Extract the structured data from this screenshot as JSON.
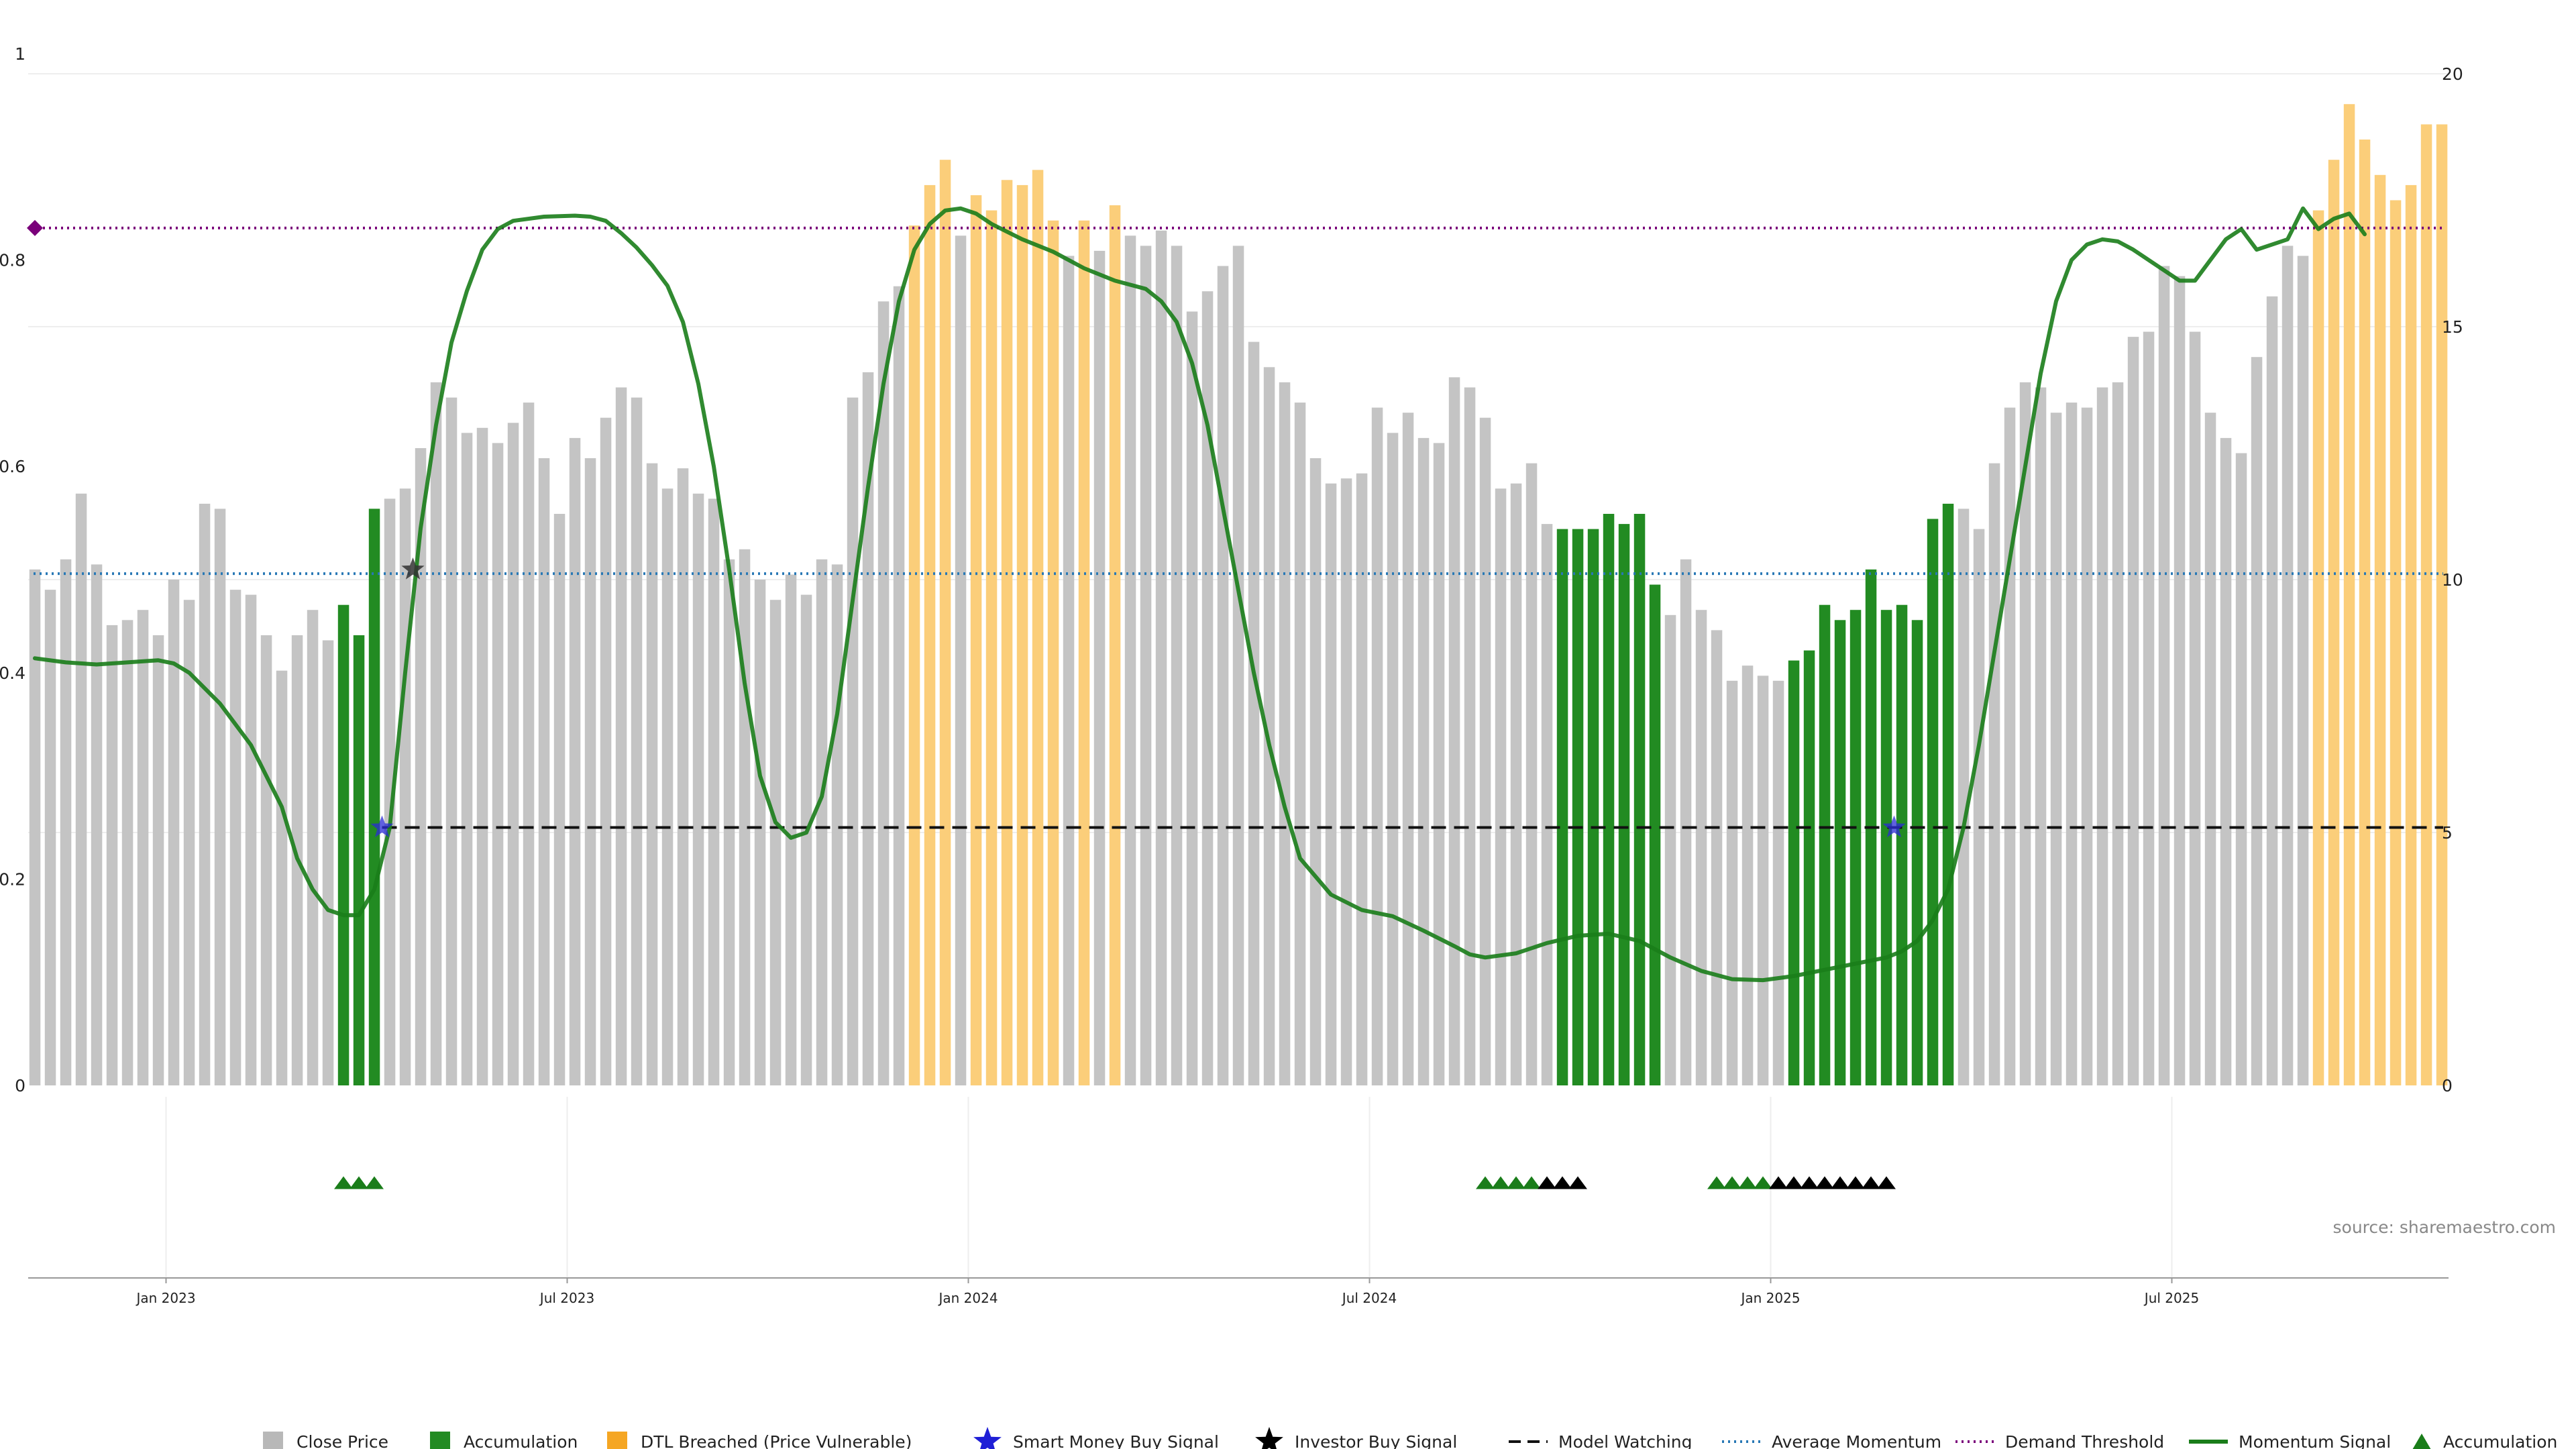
{
  "chart_data": {
    "type": "bar",
    "title": "",
    "xlabel": "",
    "ylabel": "",
    "left_axis": {
      "range": [
        0,
        1
      ],
      "ticks": [
        "0",
        "0.2",
        "0.4",
        "0.6",
        "0.8",
        "1"
      ]
    },
    "right_axis": {
      "range": [
        0,
        20
      ],
      "ticks": [
        "0",
        "5",
        "10",
        "15",
        "20"
      ]
    },
    "x_ticks": [
      "Jan 2023",
      "Jul 2023",
      "Jan 2024",
      "Jul 2024",
      "Jan 2025",
      "Jul 2025"
    ],
    "x_tick_bars": [
      8.5,
      34.5,
      60.5,
      86.5,
      112.5,
      138.5
    ],
    "grid": true,
    "legend_position": "bottom",
    "source": "source: sharemaestro.com",
    "bar_kinds": [
      "Close Price",
      "Accumulation",
      "DTL Breached (Price Vulnerable)"
    ],
    "bar_colors": {
      "gray": "#c4c4c4",
      "green": "#228b22",
      "orange": "#fbce7a"
    },
    "bars": [
      [
        10.2,
        "gray"
      ],
      [
        9.8,
        "gray"
      ],
      [
        10.4,
        "gray"
      ],
      [
        11.7,
        "gray"
      ],
      [
        10.3,
        "gray"
      ],
      [
        9.1,
        "gray"
      ],
      [
        9.2,
        "gray"
      ],
      [
        9.4,
        "gray"
      ],
      [
        8.9,
        "gray"
      ],
      [
        10.0,
        "gray"
      ],
      [
        9.6,
        "gray"
      ],
      [
        11.5,
        "gray"
      ],
      [
        11.4,
        "gray"
      ],
      [
        9.8,
        "gray"
      ],
      [
        9.7,
        "gray"
      ],
      [
        8.9,
        "gray"
      ],
      [
        8.2,
        "gray"
      ],
      [
        8.9,
        "gray"
      ],
      [
        9.4,
        "gray"
      ],
      [
        8.8,
        "gray"
      ],
      [
        9.5,
        "green"
      ],
      [
        8.9,
        "green"
      ],
      [
        11.4,
        "green"
      ],
      [
        11.6,
        "gray"
      ],
      [
        11.8,
        "gray"
      ],
      [
        12.6,
        "gray"
      ],
      [
        13.9,
        "gray"
      ],
      [
        13.6,
        "gray"
      ],
      [
        12.9,
        "gray"
      ],
      [
        13.0,
        "gray"
      ],
      [
        12.7,
        "gray"
      ],
      [
        13.1,
        "gray"
      ],
      [
        13.5,
        "gray"
      ],
      [
        12.4,
        "gray"
      ],
      [
        11.3,
        "gray"
      ],
      [
        12.8,
        "gray"
      ],
      [
        12.4,
        "gray"
      ],
      [
        13.2,
        "gray"
      ],
      [
        13.8,
        "gray"
      ],
      [
        13.6,
        "gray"
      ],
      [
        12.3,
        "gray"
      ],
      [
        11.8,
        "gray"
      ],
      [
        12.2,
        "gray"
      ],
      [
        11.7,
        "gray"
      ],
      [
        11.6,
        "gray"
      ],
      [
        10.4,
        "gray"
      ],
      [
        10.6,
        "gray"
      ],
      [
        10.0,
        "gray"
      ],
      [
        9.6,
        "gray"
      ],
      [
        10.1,
        "gray"
      ],
      [
        9.7,
        "gray"
      ],
      [
        10.4,
        "gray"
      ],
      [
        10.3,
        "gray"
      ],
      [
        13.6,
        "gray"
      ],
      [
        14.1,
        "gray"
      ],
      [
        15.5,
        "gray"
      ],
      [
        15.8,
        "gray"
      ],
      [
        17.0,
        "orange"
      ],
      [
        17.8,
        "orange"
      ],
      [
        18.3,
        "orange"
      ],
      [
        16.8,
        "gray"
      ],
      [
        17.6,
        "orange"
      ],
      [
        17.3,
        "orange"
      ],
      [
        17.9,
        "orange"
      ],
      [
        17.8,
        "orange"
      ],
      [
        18.1,
        "orange"
      ],
      [
        17.1,
        "orange"
      ],
      [
        16.4,
        "gray"
      ],
      [
        17.1,
        "orange"
      ],
      [
        16.5,
        "gray"
      ],
      [
        17.4,
        "orange"
      ],
      [
        16.8,
        "gray"
      ],
      [
        16.6,
        "gray"
      ],
      [
        16.9,
        "gray"
      ],
      [
        16.6,
        "gray"
      ],
      [
        15.3,
        "gray"
      ],
      [
        15.7,
        "gray"
      ],
      [
        16.2,
        "gray"
      ],
      [
        16.6,
        "gray"
      ],
      [
        14.7,
        "gray"
      ],
      [
        14.2,
        "gray"
      ],
      [
        13.9,
        "gray"
      ],
      [
        13.5,
        "gray"
      ],
      [
        12.4,
        "gray"
      ],
      [
        11.9,
        "gray"
      ],
      [
        12.0,
        "gray"
      ],
      [
        12.1,
        "gray"
      ],
      [
        13.4,
        "gray"
      ],
      [
        12.9,
        "gray"
      ],
      [
        13.3,
        "gray"
      ],
      [
        12.8,
        "gray"
      ],
      [
        12.7,
        "gray"
      ],
      [
        14.0,
        "gray"
      ],
      [
        13.8,
        "gray"
      ],
      [
        13.2,
        "gray"
      ],
      [
        11.8,
        "gray"
      ],
      [
        11.9,
        "gray"
      ],
      [
        12.3,
        "gray"
      ],
      [
        11.1,
        "gray"
      ],
      [
        11.0,
        "green"
      ],
      [
        11.0,
        "green"
      ],
      [
        11.0,
        "green"
      ],
      [
        11.3,
        "green"
      ],
      [
        11.1,
        "green"
      ],
      [
        11.3,
        "green"
      ],
      [
        9.9,
        "green"
      ],
      [
        9.3,
        "gray"
      ],
      [
        10.4,
        "gray"
      ],
      [
        9.4,
        "gray"
      ],
      [
        9.0,
        "gray"
      ],
      [
        8.0,
        "gray"
      ],
      [
        8.3,
        "gray"
      ],
      [
        8.1,
        "gray"
      ],
      [
        8.0,
        "gray"
      ],
      [
        8.4,
        "green"
      ],
      [
        8.6,
        "green"
      ],
      [
        9.5,
        "green"
      ],
      [
        9.2,
        "green"
      ],
      [
        9.4,
        "green"
      ],
      [
        10.2,
        "green"
      ],
      [
        9.4,
        "green"
      ],
      [
        9.5,
        "green"
      ],
      [
        9.2,
        "green"
      ],
      [
        11.2,
        "green"
      ],
      [
        11.5,
        "green"
      ],
      [
        11.4,
        "gray"
      ],
      [
        11.0,
        "gray"
      ],
      [
        12.3,
        "gray"
      ],
      [
        13.4,
        "gray"
      ],
      [
        13.9,
        "gray"
      ],
      [
        13.8,
        "gray"
      ],
      [
        13.3,
        "gray"
      ],
      [
        13.5,
        "gray"
      ],
      [
        13.4,
        "gray"
      ],
      [
        13.8,
        "gray"
      ],
      [
        13.9,
        "gray"
      ],
      [
        14.8,
        "gray"
      ],
      [
        14.9,
        "gray"
      ],
      [
        16.2,
        "gray"
      ],
      [
        16.0,
        "gray"
      ],
      [
        14.9,
        "gray"
      ],
      [
        13.3,
        "gray"
      ],
      [
        12.8,
        "gray"
      ],
      [
        12.5,
        "gray"
      ],
      [
        14.4,
        "gray"
      ],
      [
        15.6,
        "gray"
      ],
      [
        16.6,
        "gray"
      ],
      [
        16.4,
        "gray"
      ],
      [
        17.3,
        "orange"
      ],
      [
        18.3,
        "orange"
      ],
      [
        19.4,
        "orange"
      ],
      [
        18.7,
        "orange"
      ],
      [
        18.0,
        "orange"
      ],
      [
        17.5,
        "orange"
      ],
      [
        17.8,
        "orange"
      ],
      [
        19.0,
        "orange"
      ],
      [
        19.0,
        "orange"
      ]
    ],
    "momentum_signal": {
      "name": "Momentum Signal",
      "color": "#1a7d1a",
      "points": [
        [
          0,
          0.414
        ],
        [
          2,
          0.41
        ],
        [
          4,
          0.408
        ],
        [
          6,
          0.41
        ],
        [
          8,
          0.412
        ],
        [
          9,
          0.409
        ],
        [
          10,
          0.4
        ],
        [
          12,
          0.37
        ],
        [
          14,
          0.33
        ],
        [
          16,
          0.27
        ],
        [
          17,
          0.22
        ],
        [
          18,
          0.19
        ],
        [
          19,
          0.17
        ],
        [
          20,
          0.165
        ],
        [
          21,
          0.165
        ],
        [
          22,
          0.19
        ],
        [
          23,
          0.25
        ],
        [
          24,
          0.4
        ],
        [
          25,
          0.54
        ],
        [
          26,
          0.64
        ],
        [
          27,
          0.72
        ],
        [
          28,
          0.77
        ],
        [
          29,
          0.81
        ],
        [
          30,
          0.83
        ],
        [
          31,
          0.838
        ],
        [
          33,
          0.842
        ],
        [
          35,
          0.843
        ],
        [
          36,
          0.842
        ],
        [
          37,
          0.838
        ],
        [
          38,
          0.826
        ],
        [
          39,
          0.812
        ],
        [
          40,
          0.795
        ],
        [
          41,
          0.775
        ],
        [
          42,
          0.74
        ],
        [
          43,
          0.68
        ],
        [
          44,
          0.6
        ],
        [
          45,
          0.5
        ],
        [
          46,
          0.39
        ],
        [
          47,
          0.3
        ],
        [
          48,
          0.255
        ],
        [
          49,
          0.24
        ],
        [
          50,
          0.245
        ],
        [
          51,
          0.28
        ],
        [
          52,
          0.36
        ],
        [
          53,
          0.47
        ],
        [
          54,
          0.58
        ],
        [
          55,
          0.68
        ],
        [
          56,
          0.76
        ],
        [
          57,
          0.81
        ],
        [
          58,
          0.835
        ],
        [
          59,
          0.848
        ],
        [
          60,
          0.85
        ],
        [
          61,
          0.845
        ],
        [
          62,
          0.835
        ],
        [
          64,
          0.82
        ],
        [
          66,
          0.808
        ],
        [
          68,
          0.792
        ],
        [
          70,
          0.78
        ],
        [
          72,
          0.772
        ],
        [
          73,
          0.76
        ],
        [
          74,
          0.74
        ],
        [
          75,
          0.7
        ],
        [
          76,
          0.64
        ],
        [
          77,
          0.56
        ],
        [
          78,
          0.48
        ],
        [
          79,
          0.4
        ],
        [
          80,
          0.33
        ],
        [
          81,
          0.27
        ],
        [
          82,
          0.22
        ],
        [
          84,
          0.185
        ],
        [
          86,
          0.17
        ],
        [
          88,
          0.164
        ],
        [
          90,
          0.15
        ],
        [
          92,
          0.135
        ],
        [
          93,
          0.127
        ],
        [
          94,
          0.124
        ],
        [
          96,
          0.128
        ],
        [
          98,
          0.138
        ],
        [
          100,
          0.145
        ],
        [
          102,
          0.147
        ],
        [
          104,
          0.14
        ],
        [
          106,
          0.124
        ],
        [
          108,
          0.111
        ],
        [
          110,
          0.103
        ],
        [
          112,
          0.102
        ],
        [
          114,
          0.106
        ],
        [
          116,
          0.112
        ],
        [
          118,
          0.118
        ],
        [
          120,
          0.124
        ],
        [
          121,
          0.13
        ],
        [
          122,
          0.14
        ],
        [
          123,
          0.16
        ],
        [
          124,
          0.19
        ],
        [
          125,
          0.25
        ],
        [
          126,
          0.33
        ],
        [
          127,
          0.42
        ],
        [
          128,
          0.51
        ],
        [
          129,
          0.6
        ],
        [
          130,
          0.69
        ],
        [
          131,
          0.76
        ],
        [
          132,
          0.8
        ],
        [
          133,
          0.815
        ],
        [
          134,
          0.82
        ],
        [
          135,
          0.818
        ],
        [
          136,
          0.81
        ],
        [
          137,
          0.8
        ],
        [
          138,
          0.79
        ],
        [
          139,
          0.78
        ],
        [
          140,
          0.78
        ],
        [
          141,
          0.8
        ],
        [
          142,
          0.82
        ],
        [
          143,
          0.83
        ],
        [
          144,
          0.81
        ],
        [
          146,
          0.82
        ],
        [
          147,
          0.85
        ],
        [
          148,
          0.83
        ],
        [
          149,
          0.84
        ],
        [
          150,
          0.845
        ],
        [
          151,
          0.825
        ]
      ]
    },
    "average_momentum": {
      "name": "Average Momentum",
      "value": 0.496,
      "color": "#2878b5"
    },
    "demand_threshold": {
      "name": "Demand Threshold",
      "value": 0.831,
      "color": "#7a007a"
    },
    "model_watching": {
      "name": "Model Watching",
      "value": 0.25,
      "from_bar": 22.5,
      "color": "#111111"
    },
    "smart_money_buy_signals": {
      "name": "Smart Money Buy Signal",
      "points": [
        [
          22.5,
          0.25
        ],
        [
          120.5,
          0.25
        ]
      ],
      "color": "#2b2bd6"
    },
    "investor_buy_signals": {
      "name": "Investor Buy Signal",
      "points": [
        [
          24.5,
          0.5
        ]
      ],
      "color": "#333333"
    },
    "accumulation_markers": {
      "name": "Accumulation",
      "green_bars": [
        20,
        21,
        22,
        94,
        95,
        96,
        97,
        109,
        110,
        111,
        112
      ],
      "black_bars": [
        98,
        99,
        100,
        113,
        114,
        115,
        116,
        117,
        118,
        119,
        120
      ],
      "green_color": "#1a7d1a",
      "black_color": "#000000"
    },
    "legend": [
      {
        "label": "Close Price",
        "symbol": "square",
        "color": "#b8b8b8"
      },
      {
        "label": "Accumulation",
        "symbol": "square",
        "color": "#228b22"
      },
      {
        "label": "DTL Breached (Price Vulnerable)",
        "symbol": "square",
        "color": "#f5a623"
      },
      {
        "label": "Smart Money Buy Signal",
        "symbol": "star",
        "color": "#1f1fd6"
      },
      {
        "label": "Investor Buy Signal",
        "symbol": "star",
        "color": "#000000"
      },
      {
        "label": "Model Watching",
        "symbol": "dash",
        "color": "#111111"
      },
      {
        "label": "Average Momentum",
        "symbol": "dot",
        "color": "#2878b5"
      },
      {
        "label": "Demand Threshold",
        "symbol": "dot",
        "color": "#7a007a"
      },
      {
        "label": "Momentum Signal",
        "symbol": "line",
        "color": "#1a7d1a"
      },
      {
        "label": "Accumulation",
        "symbol": "triangle",
        "color": "#1a7d1a"
      }
    ]
  }
}
